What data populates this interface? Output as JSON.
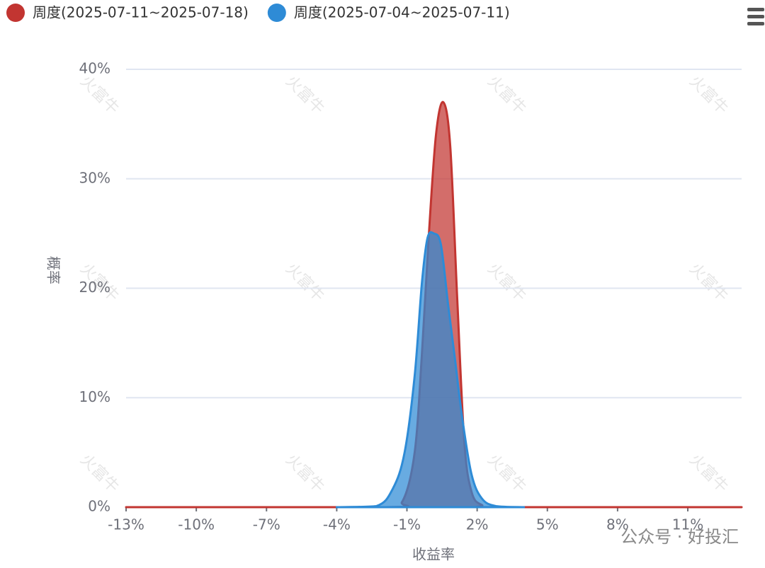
{
  "chart_data": {
    "type": "area",
    "x_label": "收益率",
    "y_label": "概率",
    "watermark": "火富牛",
    "footer_watermark": "公众号 · 好投汇",
    "xlim": [
      -13,
      13.3
    ],
    "ylim": [
      0,
      40
    ],
    "xticks": [
      {
        "value": -13,
        "label": "-13%"
      },
      {
        "value": -10,
        "label": "-10%"
      },
      {
        "value": -7,
        "label": "-7%"
      },
      {
        "value": -4,
        "label": "-4%"
      },
      {
        "value": -1,
        "label": "-1%"
      },
      {
        "value": 2,
        "label": "2%"
      },
      {
        "value": 5,
        "label": "5%"
      },
      {
        "value": 8,
        "label": "8%"
      },
      {
        "value": 11,
        "label": "11%"
      }
    ],
    "yticks": [
      {
        "value": 0,
        "label": "0%"
      },
      {
        "value": 10,
        "label": "10%"
      },
      {
        "value": 20,
        "label": "20%"
      },
      {
        "value": 30,
        "label": "30%"
      },
      {
        "value": 40,
        "label": "40%"
      }
    ],
    "grid": true,
    "series": [
      {
        "name": "周度(2025-07-11~2025-07-18)",
        "color": "#c23531",
        "x": [
          -13,
          -2,
          -1.2,
          -0.67,
          -0.36,
          -0.06,
          0.24,
          0.55,
          0.85,
          1.15,
          1.45,
          1.76,
          2.2,
          3,
          13.3
        ],
        "values": [
          0,
          0,
          0.5,
          5,
          14,
          25,
          34,
          37,
          33,
          19,
          6,
          1.4,
          0.2,
          0,
          0
        ]
      },
      {
        "name": "周度(2025-07-04~2025-07-11)",
        "color": "#2e8bd6",
        "x": [
          -4,
          -2.3,
          -1.6,
          -1.1,
          -0.67,
          -0.36,
          -0.12,
          0.15,
          0.45,
          0.76,
          1.06,
          1.36,
          1.76,
          2.2,
          2.8,
          4
        ],
        "values": [
          0,
          0.1,
          1.7,
          5,
          12,
          20.5,
          24.6,
          25,
          24,
          18.5,
          13.4,
          8.2,
          3,
          0.8,
          0.1,
          0
        ]
      }
    ]
  }
}
